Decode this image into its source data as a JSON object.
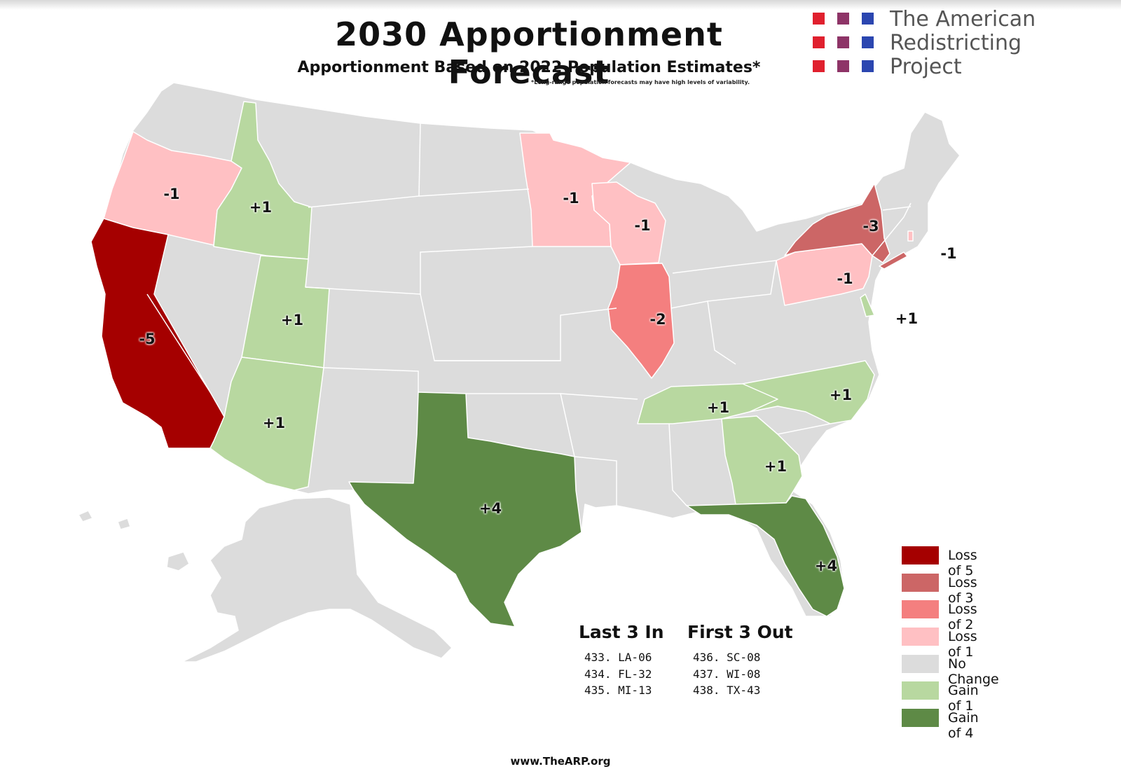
{
  "title": "2030 Apportionment Forecast",
  "subtitle": "Apportionment Based on 2022 Population Estimates*",
  "footnote": "*Long-range population forecasts may have high levels of variability.",
  "logo": {
    "line1": "The American",
    "line2": "Redistricting",
    "line3": "Project",
    "square_colors": [
      "#e0202e",
      "#8e3467",
      "#2b46b0"
    ]
  },
  "colors": {
    "loss5": "#a50000",
    "loss3": "#cc6666",
    "loss2": "#f47f7f",
    "loss1": "#ffc0c3",
    "none": "#dcdcdc",
    "gain1": "#b8d8a0",
    "gain4": "#5e8a46"
  },
  "states": [
    {
      "state": "California",
      "change": "-5",
      "category": "loss5"
    },
    {
      "state": "New York",
      "change": "-3",
      "category": "loss3"
    },
    {
      "state": "Illinois",
      "change": "-2",
      "category": "loss2"
    },
    {
      "state": "Oregon",
      "change": "-1",
      "category": "loss1"
    },
    {
      "state": "Minnesota",
      "change": "-1",
      "category": "loss1"
    },
    {
      "state": "Wisconsin",
      "change": "-1",
      "category": "loss1"
    },
    {
      "state": "Pennsylvania",
      "change": "-1",
      "category": "loss1"
    },
    {
      "state": "Rhode Island",
      "change": "-1",
      "category": "loss1"
    },
    {
      "state": "Idaho",
      "change": "+1",
      "category": "gain1"
    },
    {
      "state": "Utah",
      "change": "+1",
      "category": "gain1"
    },
    {
      "state": "Arizona",
      "change": "+1",
      "category": "gain1"
    },
    {
      "state": "Delaware",
      "change": "+1",
      "category": "gain1"
    },
    {
      "state": "Tennessee",
      "change": "+1",
      "category": "gain1"
    },
    {
      "state": "North Carolina",
      "change": "+1",
      "category": "gain1"
    },
    {
      "state": "Georgia",
      "change": "+1",
      "category": "gain1"
    },
    {
      "state": "Texas",
      "change": "+4",
      "category": "gain4"
    },
    {
      "state": "Florida",
      "change": "+4",
      "category": "gain4"
    }
  ],
  "legend": [
    {
      "label": "Loss of 5",
      "color": "#a50000"
    },
    {
      "label": "Loss of 3",
      "color": "#cc6666"
    },
    {
      "label": "Loss of 2",
      "color": "#f47f7f"
    },
    {
      "label": "Loss of 1",
      "color": "#ffc0c3"
    },
    {
      "label": "No Change",
      "color": "#dcdcdc"
    },
    {
      "label": "Gain of 1",
      "color": "#b8d8a0"
    },
    {
      "label": "Gain of 4",
      "color": "#5e8a46"
    }
  ],
  "last_in": {
    "heading": "Last 3 In",
    "items": [
      "433. LA-06",
      "434. FL-32",
      "435. MI-13"
    ]
  },
  "first_out": {
    "heading": "First 3 Out",
    "items": [
      "436. SC-08",
      "437. WI-08",
      "438. TX-43"
    ]
  },
  "website": "www.TheARP.org"
}
